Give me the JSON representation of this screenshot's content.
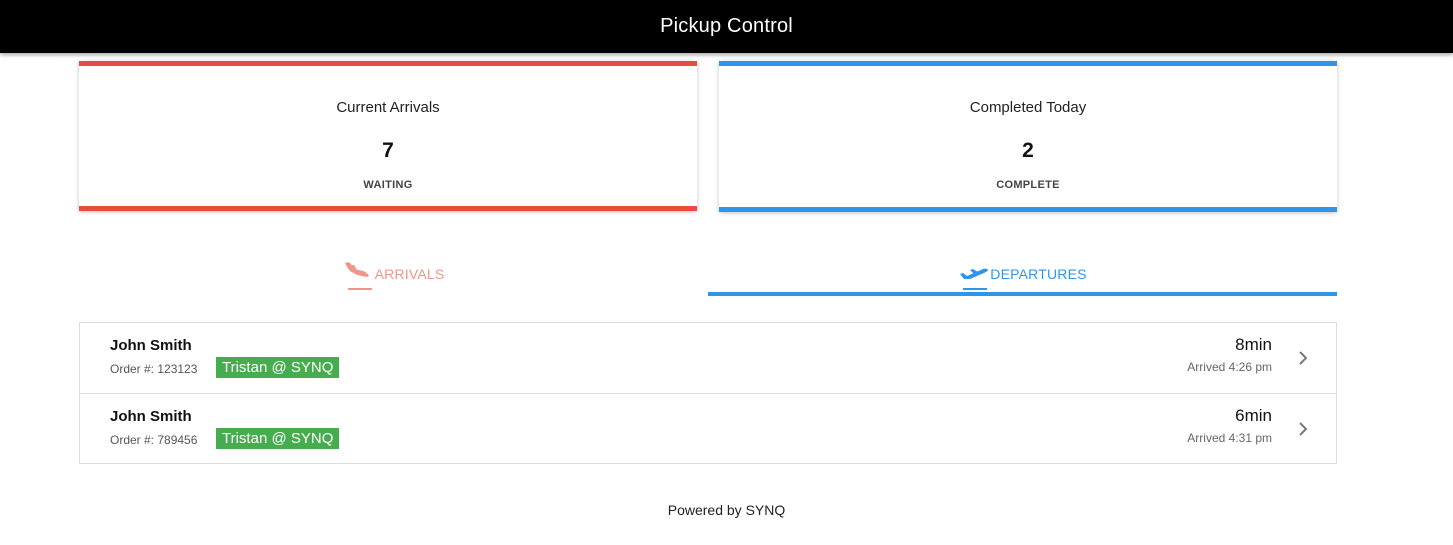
{
  "header": {
    "title": "Pickup Control"
  },
  "cards": {
    "arrivals": {
      "title": "Current Arrivals",
      "count": "7",
      "status": "WAITING",
      "accent": "#e84c3d"
    },
    "completed": {
      "title": "Completed Today",
      "count": "2",
      "status": "COMPLETE",
      "accent": "#2f95e8"
    }
  },
  "tabs": {
    "arrivals": {
      "label": "ARRIVALS",
      "icon": "plane-landing-icon",
      "color": "#f0958c"
    },
    "departures": {
      "label": "DEPARTURES",
      "icon": "plane-takeoff-icon",
      "color": "#2f95e8",
      "active": true
    }
  },
  "orders": [
    {
      "name": "John Smith",
      "order_label": "Order #: 123123",
      "tag": "Tristan @ SYNQ",
      "wait": "8min",
      "arrived": "Arrived 4:26 pm"
    },
    {
      "name": "John Smith",
      "order_label": "Order #: 789456",
      "tag": "Tristan @ SYNQ",
      "wait": "6min",
      "arrived": "Arrived 4:31 pm"
    }
  ],
  "footer": {
    "text": "Powered by SYNQ"
  },
  "colors": {
    "tag_green": "#46ad4f",
    "topbar": "#000000"
  }
}
